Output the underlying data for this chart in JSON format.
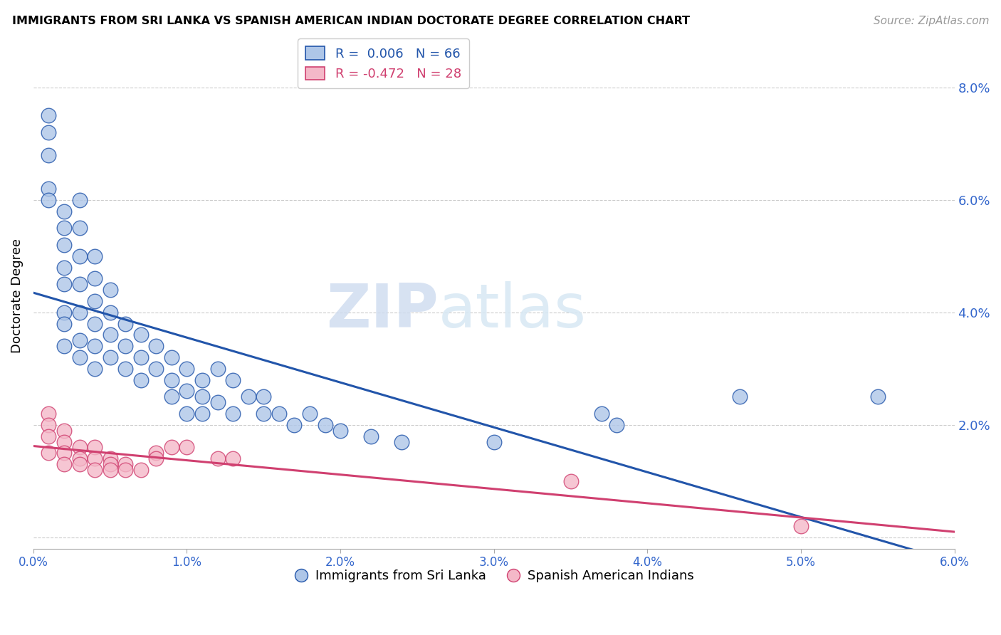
{
  "title": "IMMIGRANTS FROM SRI LANKA VS SPANISH AMERICAN INDIAN DOCTORATE DEGREE CORRELATION CHART",
  "source": "Source: ZipAtlas.com",
  "ylabel": "Doctorate Degree",
  "xlim": [
    0.0,
    0.06
  ],
  "ylim": [
    -0.002,
    0.088
  ],
  "xticks": [
    0.0,
    0.01,
    0.02,
    0.03,
    0.04,
    0.05,
    0.06
  ],
  "xtick_labels": [
    "0.0%",
    "1.0%",
    "2.0%",
    "3.0%",
    "4.0%",
    "5.0%",
    "6.0%"
  ],
  "yticks_right": [
    0.0,
    0.02,
    0.04,
    0.06,
    0.08
  ],
  "ytick_labels_right": [
    "",
    "2.0%",
    "4.0%",
    "6.0%",
    "8.0%"
  ],
  "blue_R": 0.006,
  "blue_N": 66,
  "pink_R": -0.472,
  "pink_N": 28,
  "blue_color": "#aec6e8",
  "pink_color": "#f4b8c8",
  "blue_line_color": "#2255aa",
  "pink_line_color": "#d04070",
  "legend_blue_label": "Immigrants from Sri Lanka",
  "legend_pink_label": "Spanish American Indians",
  "blue_x": [
    0.001,
    0.001,
    0.001,
    0.001,
    0.001,
    0.002,
    0.002,
    0.002,
    0.002,
    0.002,
    0.002,
    0.002,
    0.002,
    0.003,
    0.003,
    0.003,
    0.003,
    0.003,
    0.003,
    0.003,
    0.004,
    0.004,
    0.004,
    0.004,
    0.004,
    0.004,
    0.005,
    0.005,
    0.005,
    0.005,
    0.006,
    0.006,
    0.006,
    0.007,
    0.007,
    0.007,
    0.008,
    0.008,
    0.009,
    0.009,
    0.009,
    0.01,
    0.01,
    0.01,
    0.011,
    0.011,
    0.011,
    0.012,
    0.012,
    0.013,
    0.013,
    0.014,
    0.015,
    0.015,
    0.016,
    0.017,
    0.018,
    0.019,
    0.02,
    0.022,
    0.024,
    0.03,
    0.037,
    0.038,
    0.046,
    0.055
  ],
  "blue_y": [
    0.075,
    0.072,
    0.068,
    0.062,
    0.06,
    0.058,
    0.055,
    0.052,
    0.048,
    0.045,
    0.04,
    0.038,
    0.034,
    0.06,
    0.055,
    0.05,
    0.045,
    0.04,
    0.035,
    0.032,
    0.05,
    0.046,
    0.042,
    0.038,
    0.034,
    0.03,
    0.044,
    0.04,
    0.036,
    0.032,
    0.038,
    0.034,
    0.03,
    0.036,
    0.032,
    0.028,
    0.034,
    0.03,
    0.032,
    0.028,
    0.025,
    0.03,
    0.026,
    0.022,
    0.028,
    0.025,
    0.022,
    0.03,
    0.024,
    0.028,
    0.022,
    0.025,
    0.025,
    0.022,
    0.022,
    0.02,
    0.022,
    0.02,
    0.019,
    0.018,
    0.017,
    0.017,
    0.022,
    0.02,
    0.025,
    0.025
  ],
  "pink_x": [
    0.001,
    0.001,
    0.001,
    0.001,
    0.002,
    0.002,
    0.002,
    0.002,
    0.003,
    0.003,
    0.003,
    0.004,
    0.004,
    0.004,
    0.005,
    0.005,
    0.005,
    0.006,
    0.006,
    0.007,
    0.008,
    0.008,
    0.009,
    0.01,
    0.012,
    0.013,
    0.035,
    0.05
  ],
  "pink_y": [
    0.022,
    0.02,
    0.018,
    0.015,
    0.019,
    0.017,
    0.015,
    0.013,
    0.016,
    0.014,
    0.013,
    0.016,
    0.014,
    0.012,
    0.014,
    0.013,
    0.012,
    0.013,
    0.012,
    0.012,
    0.015,
    0.014,
    0.016,
    0.016,
    0.014,
    0.014,
    0.01,
    0.002
  ]
}
